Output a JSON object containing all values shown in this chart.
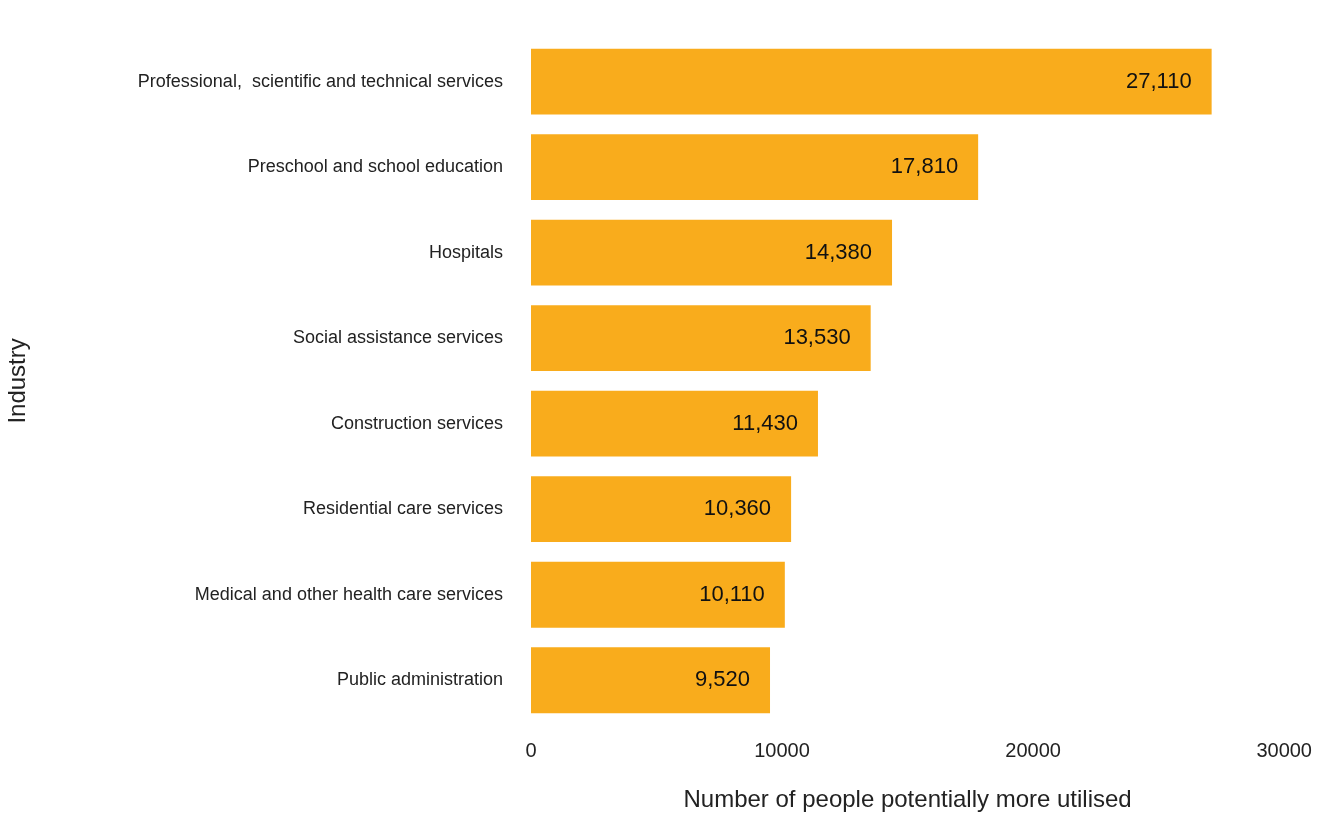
{
  "chart_data": {
    "type": "bar",
    "orientation": "horizontal",
    "xlabel": "Number of people potentially more utilised",
    "ylabel": "Industry",
    "categories": [
      "Professional,  scientific and technical services",
      "Preschool and school education",
      "Hospitals",
      "Social assistance services",
      "Construction services",
      "Residential care services",
      "Medical and other health care services",
      "Public administration"
    ],
    "values": [
      27110,
      17810,
      14380,
      13530,
      11430,
      10360,
      10110,
      9520
    ],
    "value_labels": [
      "27,110",
      "17,810",
      "14,380",
      "13,530",
      "11,430",
      "10,360",
      "10,110",
      "9,520"
    ],
    "color": "#f9ac1c",
    "xlim": [
      0,
      30000
    ],
    "xticks": [
      0,
      10000,
      20000,
      30000
    ],
    "grid": false,
    "legend": false
  }
}
